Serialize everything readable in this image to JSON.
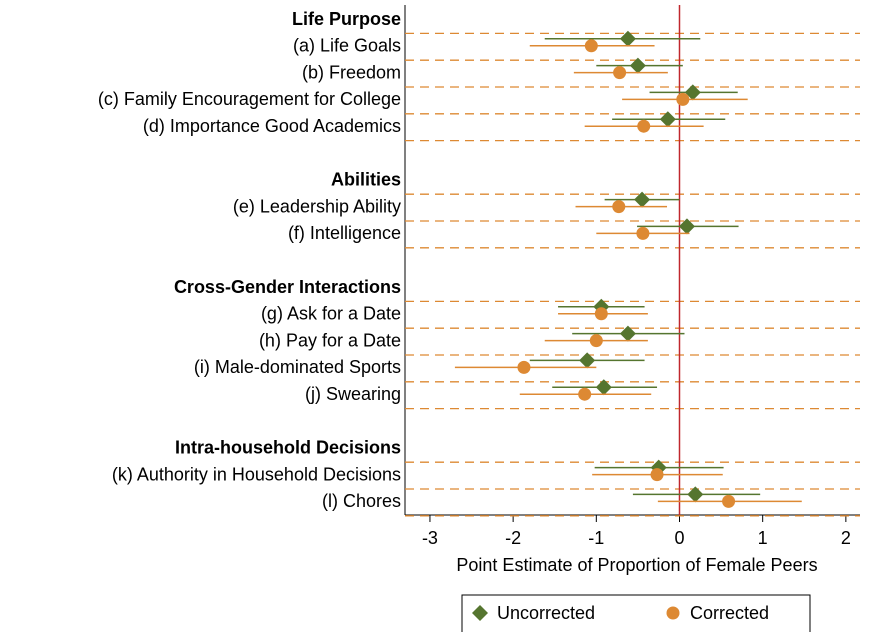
{
  "chart_data": {
    "type": "coefplot",
    "xlabel": "Point Estimate of Proportion of Female Peers",
    "xlim": [
      -3.3,
      2.17
    ],
    "xticks": [
      -3,
      -2,
      -1,
      0,
      1,
      2
    ],
    "reference_line": 0,
    "groups": [
      {
        "name": "Life Purpose",
        "categories": [
          "(a) Life Goals",
          "(b) Freedom",
          "(c) Family Encouragement for College",
          "(d) Importance Good Academics"
        ]
      },
      {
        "name": "Abilities",
        "categories": [
          "(e) Leadership Ability",
          "(f) Intelligence"
        ]
      },
      {
        "name": "Cross-Gender Interactions",
        "categories": [
          "(g) Ask for a Date",
          "(h) Pay for a Date",
          "(i) Male-dominated Sports",
          "(j) Swearing"
        ]
      },
      {
        "name": "Intra-household Decisions",
        "categories": [
          "(k) Authority in Household Decisions",
          "(l) Chores"
        ]
      }
    ],
    "series": [
      {
        "name": "Uncorrected",
        "color": "#55752f",
        "marker": "diamond",
        "values": [
          -0.62,
          -0.5,
          0.16,
          -0.14,
          -0.45,
          0.09,
          -0.94,
          -0.62,
          -1.11,
          -0.91,
          -0.25,
          0.19
        ],
        "ci_low": [
          -1.62,
          -1.0,
          -0.36,
          -0.81,
          -0.9,
          -0.51,
          -1.46,
          -1.29,
          -1.8,
          -1.53,
          -1.02,
          -0.56
        ],
        "ci_high": [
          0.25,
          0.04,
          0.7,
          0.55,
          0,
          0.71,
          -0.42,
          0.06,
          -0.42,
          -0.27,
          0.53,
          0.97
        ]
      },
      {
        "name": "Corrected",
        "color": "#dd8933",
        "marker": "circle",
        "values": [
          -1.06,
          -0.72,
          0.04,
          -0.43,
          -0.73,
          -0.44,
          -0.94,
          -1.0,
          -1.87,
          -1.14,
          -0.27,
          0.59
        ],
        "ci_low": [
          -1.8,
          -1.27,
          -0.69,
          -1.14,
          -1.25,
          -1.0,
          -1.46,
          -1.62,
          -2.7,
          -1.92,
          -1.05,
          -0.26
        ],
        "ci_high": [
          -0.3,
          -0.14,
          0.82,
          0.29,
          -0.15,
          0.12,
          -0.38,
          -0.38,
          -1.0,
          -0.34,
          0.52,
          1.47
        ]
      }
    ]
  }
}
